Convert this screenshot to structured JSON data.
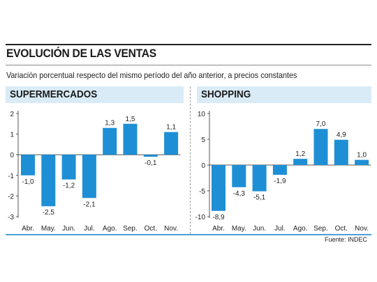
{
  "header": {
    "title": "EVOLUCIÓN DE LAS VENTAS",
    "subtitle": "Variación porcentual respecto del mismo período del año anterior, a precios constantes"
  },
  "footer": {
    "source": "Fuente: INDEC"
  },
  "colors": {
    "bar": "#1e8fd5",
    "band": "#d9ebf7",
    "rule": "#4a9fd8"
  },
  "chart_data": [
    {
      "type": "bar",
      "title": "SUPERMERCADOS",
      "categories": [
        "Abr.",
        "May.",
        "Jun.",
        "Jul.",
        "Ago.",
        "Sep.",
        "Oct.",
        "Nov."
      ],
      "values": [
        -1.0,
        -2.5,
        -1.2,
        -2.1,
        1.3,
        1.5,
        -0.1,
        1.1
      ],
      "value_labels": [
        "-1,0",
        "-2,5",
        "-1,2",
        "-2,1",
        "1,3",
        "1,5",
        "-0,1",
        "1,1"
      ],
      "yticks": [
        2,
        1,
        0,
        -1,
        -2,
        -3
      ],
      "ylim": [
        -3,
        2
      ],
      "xlabel": "",
      "ylabel": "",
      "grid": false
    },
    {
      "type": "bar",
      "title": "SHOPPING",
      "categories": [
        "Abr.",
        "May.",
        "Jun.",
        "Jul.",
        "Ago.",
        "Sep.",
        "Oct.",
        "Nov."
      ],
      "values": [
        -8.9,
        -4.3,
        -5.1,
        -1.9,
        1.2,
        7.0,
        4.9,
        1.0
      ],
      "value_labels": [
        "-8,9",
        "-4,3",
        "-5,1",
        "-1,9",
        "1,2",
        "7,0",
        "4,9",
        "1,0"
      ],
      "yticks": [
        10,
        5,
        0,
        -5,
        -10
      ],
      "ylim": [
        -10,
        10
      ],
      "xlabel": "",
      "ylabel": "",
      "grid": false
    }
  ]
}
